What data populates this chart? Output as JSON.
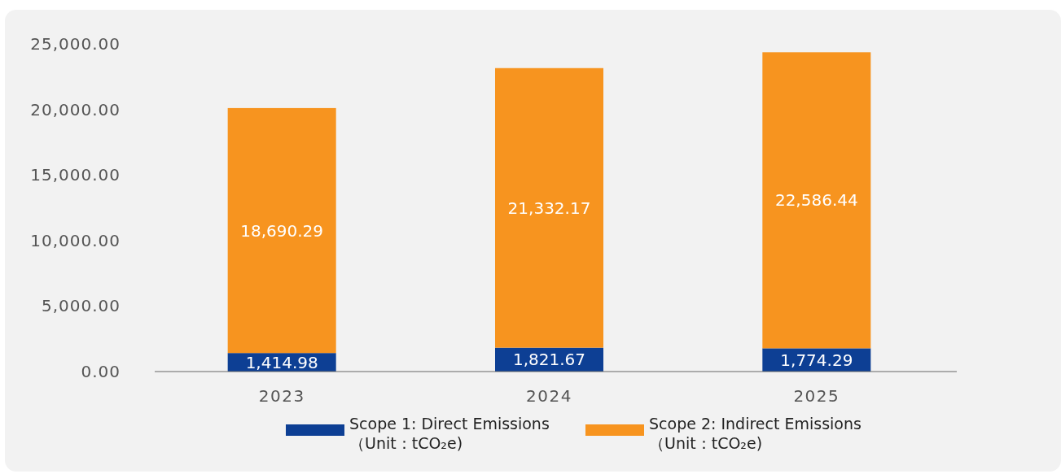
{
  "chart_data": {
    "type": "bar",
    "stacked": true,
    "categories": [
      "2023",
      "2024",
      "2025"
    ],
    "series": [
      {
        "name": "Scope 1: Direct Emissions\n（Unit：tCO₂e)",
        "color": "#0d3f94",
        "values": [
          1414.98,
          1821.67,
          1774.29
        ],
        "value_labels": [
          "1,414.98",
          "1,821.67",
          "1,774.29"
        ]
      },
      {
        "name": "Scope 2: Indirect Emissions\n（Unit：tCO₂e)",
        "color": "#f7941f",
        "values": [
          18690.29,
          21332.17,
          22586.44
        ],
        "value_labels": [
          "18,690.29",
          "21,332.17",
          "22,586.44"
        ]
      }
    ],
    "ylim": [
      0,
      25000
    ],
    "yticks": [
      {
        "value": 0,
        "label": "0.00"
      },
      {
        "value": 5000,
        "label": "5,000.00"
      },
      {
        "value": 10000,
        "label": "10,000.00"
      },
      {
        "value": 15000,
        "label": "15,000.00"
      },
      {
        "value": 20000,
        "label": "20,000.00"
      },
      {
        "value": 25000,
        "label": "25,000.00"
      }
    ],
    "grid": false,
    "legend": "bottom"
  }
}
